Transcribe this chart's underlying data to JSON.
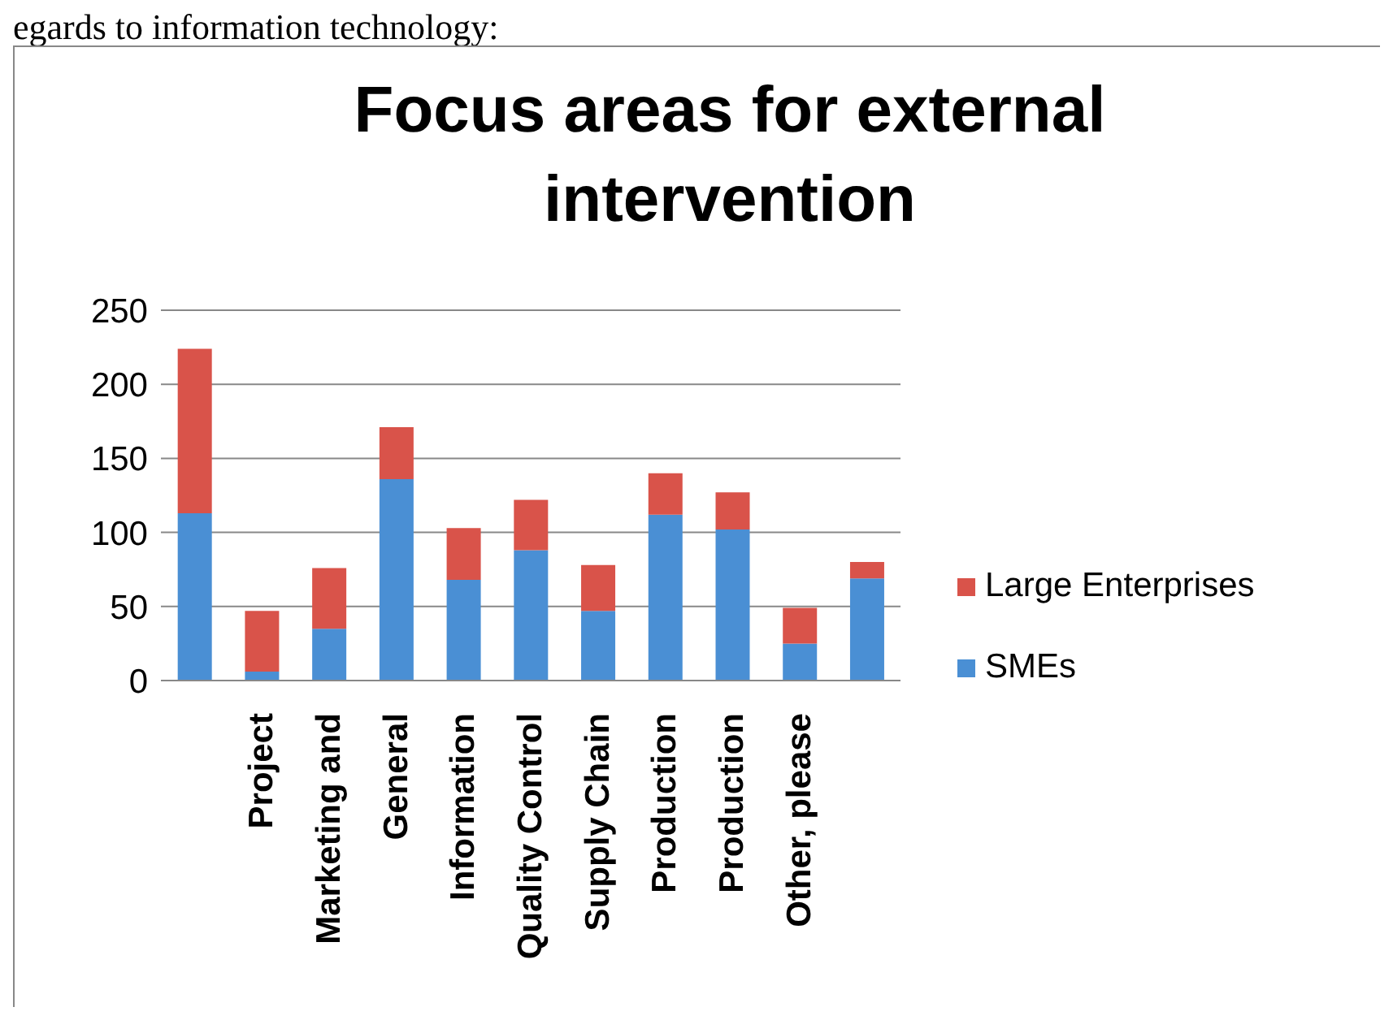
{
  "chart_data": {
    "type": "bar",
    "title": "Focus areas for external intervention",
    "annotations": [
      "egards to information technology:"
    ],
    "categories": [
      null,
      "Project",
      "Marketing and",
      "General",
      "Information",
      "Quality Control",
      "Supply Chain",
      "Production",
      "Production",
      "Other, please",
      null
    ],
    "stacked": true,
    "series": [
      {
        "name": "SMEs",
        "color": "#4a8fd4",
        "values": [
          113,
          6,
          35,
          136,
          68,
          88,
          47,
          112,
          102,
          25,
          69
        ]
      },
      {
        "name": "Large Enterprises",
        "color": "#d9534a",
        "values": [
          111,
          41,
          41,
          35,
          35,
          34,
          31,
          28,
          25,
          24,
          11
        ]
      }
    ],
    "ylim": [
      0,
      250
    ],
    "yticks": [
      0,
      50,
      100,
      150,
      200,
      250
    ],
    "grid": "y",
    "legend": "right"
  }
}
